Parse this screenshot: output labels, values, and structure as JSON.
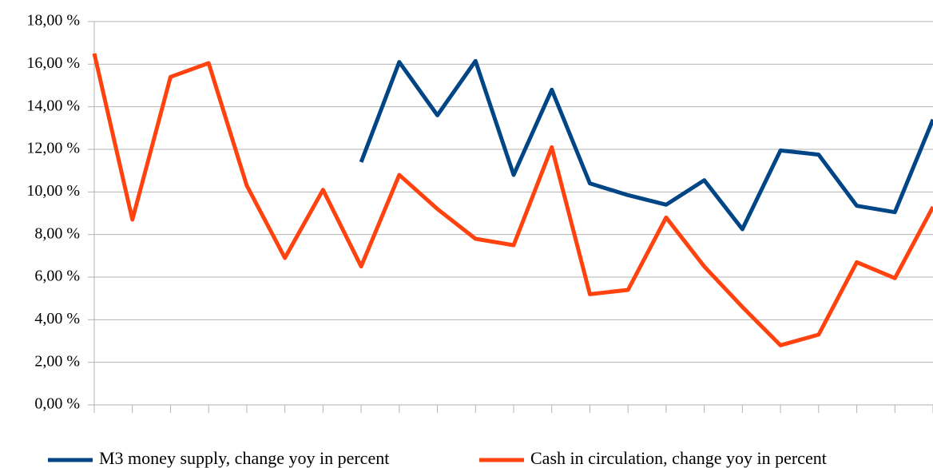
{
  "chart_data": {
    "type": "line",
    "categories": [
      null,
      null,
      null,
      null,
      null,
      null,
      null,
      null,
      null,
      null,
      null,
      null,
      null,
      null,
      null,
      null,
      null,
      null,
      null,
      null,
      null,
      null,
      null
    ],
    "series": [
      {
        "name": "M3 money supply, change yoy in percent",
        "color": "#004586",
        "values": [
          null,
          null,
          null,
          null,
          null,
          null,
          null,
          11.4,
          16.1,
          13.6,
          16.15,
          10.8,
          14.8,
          10.4,
          9.85,
          9.4,
          10.55,
          8.25,
          11.95,
          11.75,
          9.35,
          9.05,
          13.4
        ]
      },
      {
        "name": "Cash in circulation, change yoy in percent",
        "color": "#ff420e",
        "values": [
          16.5,
          8.7,
          15.4,
          16.05,
          10.3,
          6.9,
          10.1,
          6.5,
          10.8,
          9.2,
          7.8,
          7.5,
          12.1,
          5.2,
          5.4,
          8.8,
          6.5,
          4.6,
          2.8,
          3.3,
          6.7,
          5.95,
          9.3
        ]
      }
    ],
    "ylim": [
      0,
      18
    ],
    "yticks": [
      {
        "value": 0,
        "label": "0,00 %"
      },
      {
        "value": 2,
        "label": "2,00 %"
      },
      {
        "value": 4,
        "label": "4,00 %"
      },
      {
        "value": 6,
        "label": "6,00 %"
      },
      {
        "value": 8,
        "label": "8,00 %"
      },
      {
        "value": 10,
        "label": "10,00 %"
      },
      {
        "value": 12,
        "label": "12,00 %"
      },
      {
        "value": 14,
        "label": "14,00 %"
      },
      {
        "value": 16,
        "label": "16,00 %"
      },
      {
        "value": 18,
        "label": "18,00 %"
      }
    ],
    "grid": true,
    "legend": "bottom"
  }
}
